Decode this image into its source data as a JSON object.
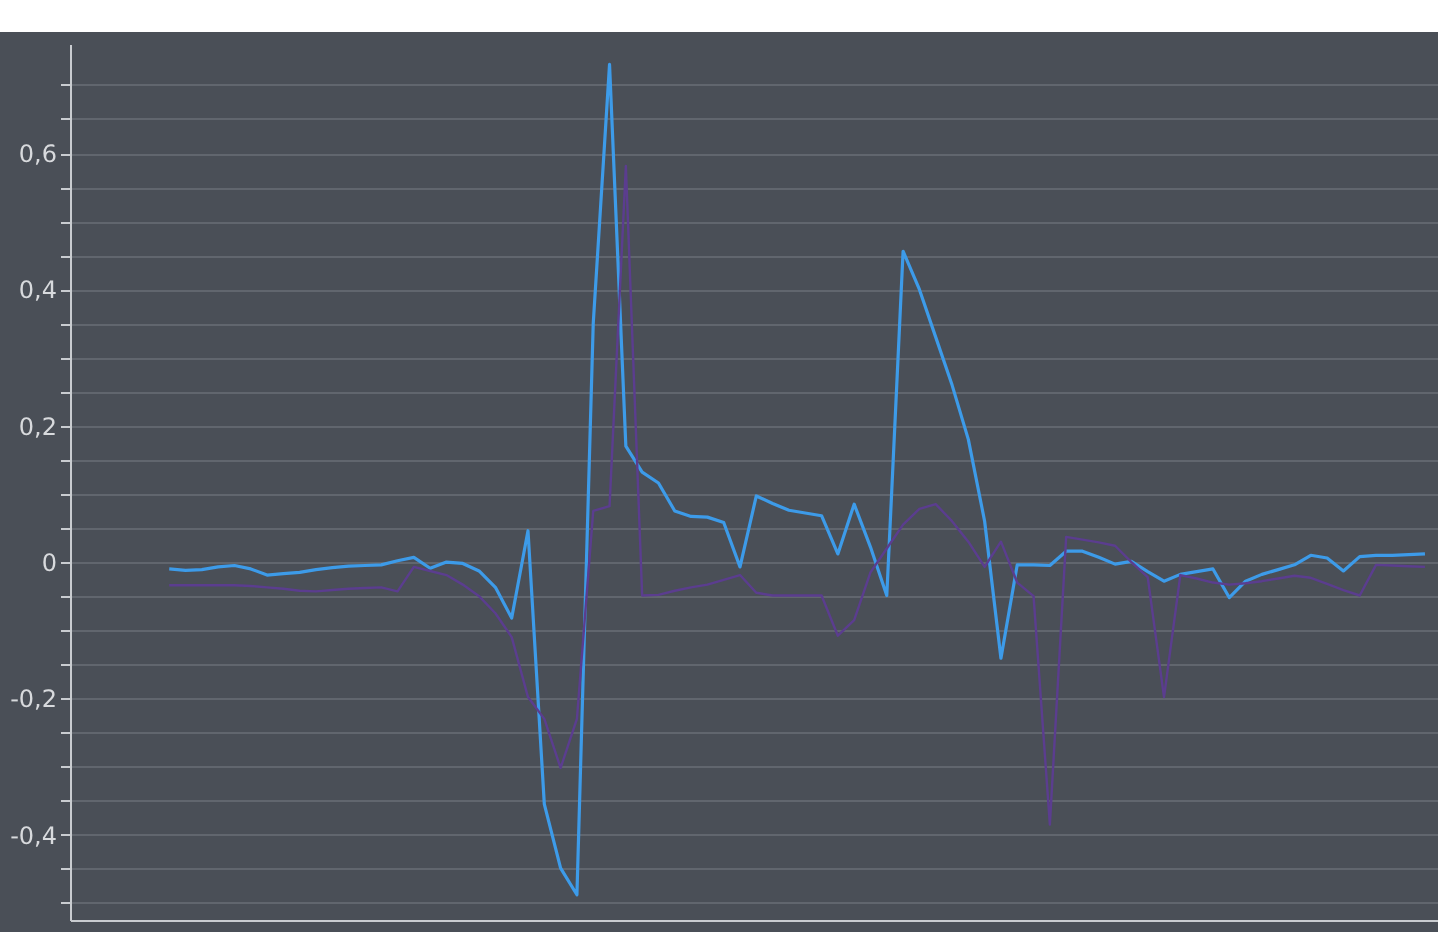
{
  "chart_data": {
    "type": "line",
    "categories": [
      null,
      null,
      null,
      null,
      null,
      null,
      null,
      null,
      null,
      null,
      null,
      null,
      null,
      null,
      null,
      null,
      null,
      null,
      null,
      null,
      null,
      null,
      null,
      null,
      null,
      null,
      null,
      null,
      null,
      null,
      null,
      null,
      null,
      null,
      null,
      null,
      null,
      null,
      null,
      null,
      null,
      null,
      null,
      null,
      null,
      null,
      null,
      null,
      null,
      null,
      null,
      null,
      null,
      null,
      null,
      null,
      null,
      null,
      null,
      null,
      null,
      null,
      null,
      null,
      null,
      null,
      null,
      null,
      null,
      null,
      null,
      null,
      null,
      null,
      null,
      null,
      null,
      null
    ],
    "series": [
      {
        "color": "#3d9be9",
        "values": [
          -0.01,
          -0.012,
          -0.011,
          -0.007,
          -0.005,
          -0.01,
          -0.019,
          -0.017,
          -0.015,
          -0.011,
          -0.008,
          -0.006,
          -0.005,
          -0.004,
          0.002,
          0.007,
          -0.009,
          0.0,
          -0.002,
          -0.013,
          -0.037,
          -0.082,
          0.046,
          -0.355,
          -0.449,
          -0.488,
          0.35,
          0.73,
          0.17,
          0.132,
          0.116,
          0.075,
          0.067,
          0.066,
          0.058,
          -0.007,
          0.097,
          0.086,
          0.076,
          0.072,
          0.068,
          0.012,
          0.085,
          0.022,
          -0.049,
          0.456,
          0.4,
          0.33,
          0.26,
          0.18,
          0.06,
          -0.141,
          -0.004,
          -0.004,
          -0.005,
          0.016,
          0.016,
          0.007,
          -0.003,
          0.001,
          -0.014,
          -0.028,
          -0.018,
          -0.014,
          -0.01,
          -0.052,
          -0.028,
          -0.018,
          -0.011,
          -0.004,
          0.01,
          0.006,
          -0.013,
          0.008,
          0.01,
          0.01,
          0.011,
          0.012
        ]
      },
      {
        "color": "#5b3d8f",
        "values": [
          -0.034,
          -0.034,
          -0.034,
          -0.034,
          -0.034,
          -0.035,
          -0.037,
          -0.039,
          -0.042,
          -0.043,
          -0.041,
          -0.039,
          -0.038,
          -0.037,
          -0.043,
          -0.007,
          -0.013,
          -0.019,
          -0.033,
          -0.05,
          -0.075,
          -0.11,
          -0.198,
          -0.23,
          -0.302,
          -0.23,
          0.075,
          0.082,
          0.581,
          -0.049,
          -0.048,
          -0.042,
          -0.037,
          -0.033,
          -0.026,
          -0.019,
          -0.045,
          -0.049,
          -0.049,
          -0.049,
          -0.049,
          -0.108,
          -0.085,
          -0.015,
          0.02,
          0.055,
          0.078,
          0.085,
          0.06,
          0.03,
          -0.007,
          0.03,
          -0.03,
          -0.05,
          -0.385,
          0.037,
          0.033,
          0.029,
          0.024,
          0.0,
          -0.022,
          -0.198,
          -0.019,
          -0.024,
          -0.03,
          -0.033,
          -0.031,
          -0.028,
          -0.024,
          -0.02,
          -0.023,
          -0.032,
          -0.041,
          -0.049,
          -0.004,
          -0.005,
          -0.006,
          -0.007
        ]
      }
    ],
    "ylim": [
      -0.525,
      0.76
    ],
    "yticks": [
      {
        "value": -0.5,
        "label": null
      },
      {
        "value": -0.45,
        "label": null
      },
      {
        "value": -0.4,
        "label": "-0,4"
      },
      {
        "value": -0.35,
        "label": null
      },
      {
        "value": -0.3,
        "label": null
      },
      {
        "value": -0.25,
        "label": null
      },
      {
        "value": -0.2,
        "label": "-0,2"
      },
      {
        "value": -0.15,
        "label": null
      },
      {
        "value": -0.1,
        "label": null
      },
      {
        "value": -0.05,
        "label": null
      },
      0,
      {
        "value": 0.05,
        "label": null
      },
      {
        "value": 0.1,
        "label": null
      },
      {
        "value": 0.15,
        "label": null
      },
      {
        "value": 0.2,
        "label": "0,2"
      },
      {
        "value": 0.25,
        "label": null
      },
      {
        "value": 0.3,
        "label": null
      },
      {
        "value": 0.35,
        "label": null
      },
      {
        "value": 0.4,
        "label": "0,4"
      },
      {
        "value": 0.45,
        "label": null
      },
      {
        "value": 0.5,
        "label": null
      },
      {
        "value": 0.55,
        "label": null
      },
      {
        "value": 0.6,
        "label": "0,6"
      },
      {
        "value": 0.65,
        "label": null
      },
      {
        "value": 0.7,
        "label": null
      }
    ],
    "grid": "y"
  }
}
